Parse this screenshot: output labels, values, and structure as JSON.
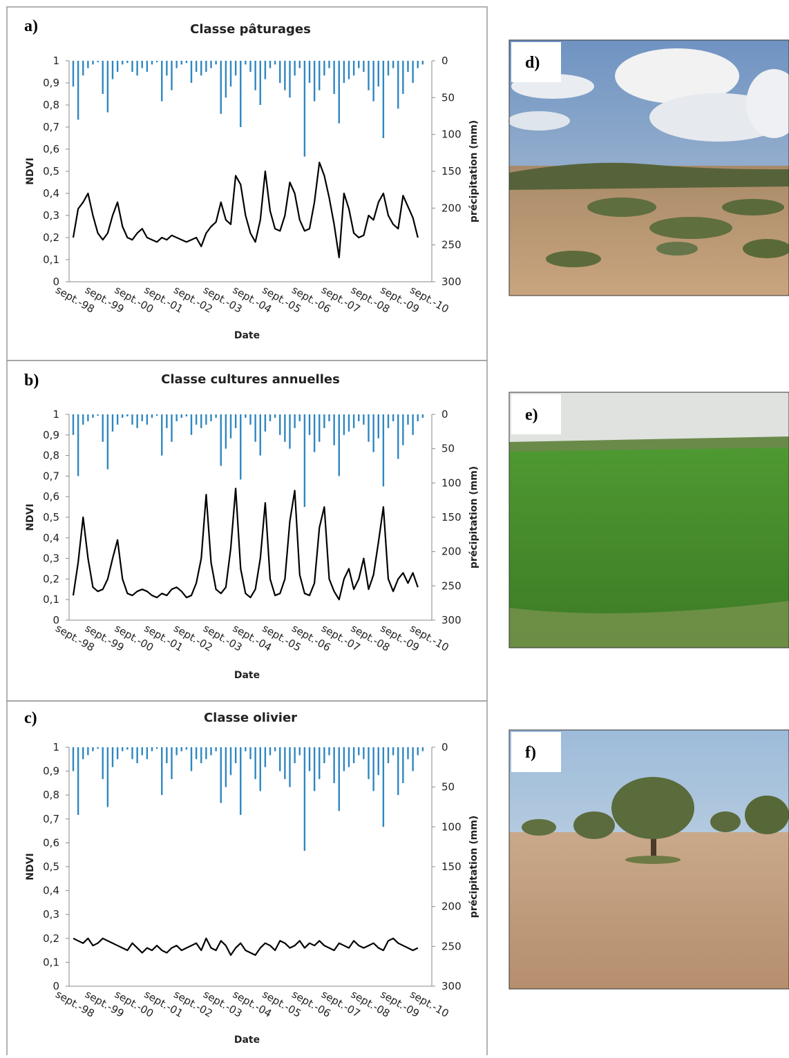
{
  "chart_data": [
    {
      "type": "line",
      "label": "a)",
      "title": "Classe pâturages",
      "x_label": "Date",
      "y_label": "NDVI",
      "y2_label": "précipitation (mm)",
      "categories": [
        "sept.-98",
        null,
        null,
        null,
        null,
        null,
        "sept.-99",
        null,
        null,
        null,
        null,
        null,
        "sept.-00",
        null,
        null,
        null,
        null,
        null,
        "sept.-01",
        null,
        null,
        null,
        null,
        null,
        "sept.-02",
        null,
        null,
        null,
        null,
        null,
        "sept.-03",
        null,
        null,
        null,
        null,
        null,
        "sept.-04",
        null,
        null,
        null,
        null,
        null,
        "sept.-05",
        null,
        null,
        null,
        null,
        null,
        "sept.-06",
        null,
        null,
        null,
        null,
        null,
        "sept.-07",
        null,
        null,
        null,
        null,
        null,
        "sept.-08",
        null,
        null,
        null,
        null,
        null,
        "sept.-09",
        null,
        null,
        null,
        null,
        null,
        "sept.-10"
      ],
      "ylim": [
        0,
        1
      ],
      "yticks": [
        0,
        {
          "value": 0.1,
          "label": "0,1"
        },
        {
          "value": 0.2,
          "label": "0,2"
        },
        {
          "value": 0.3,
          "label": "0,3"
        },
        {
          "value": 0.4,
          "label": "0,4"
        },
        {
          "value": 0.5,
          "label": "0,5"
        },
        {
          "value": 0.6,
          "label": "0,6"
        },
        {
          "value": 0.7,
          "label": "0,7"
        },
        {
          "value": 0.8,
          "label": "0,8"
        },
        {
          "value": 0.9,
          "label": "0,9"
        },
        1
      ],
      "y2lim": [
        300,
        0
      ],
      "y2ticks": [
        0,
        50,
        100,
        150,
        200,
        250,
        300
      ],
      "series": [
        {
          "type": "bar",
          "axis": "y2",
          "color": "#2e86c1",
          "values": [
            35,
            80,
            20,
            10,
            5,
            2,
            45,
            70,
            25,
            15,
            5,
            3,
            15,
            20,
            10,
            15,
            5,
            2,
            55,
            20,
            40,
            10,
            5,
            3,
            30,
            15,
            20,
            15,
            10,
            5,
            72,
            50,
            35,
            20,
            90,
            5,
            15,
            40,
            60,
            25,
            10,
            5,
            30,
            40,
            50,
            20,
            10,
            130,
            30,
            55,
            40,
            20,
            10,
            45,
            85,
            30,
            25,
            20,
            10,
            15,
            40,
            55,
            35,
            105,
            20,
            10,
            65,
            45,
            15,
            30,
            10,
            5,
            0
          ]
        },
        {
          "type": "line",
          "color": "#000000",
          "values": [
            0.2,
            0.33,
            0.36,
            0.4,
            0.3,
            0.22,
            0.19,
            0.22,
            0.3,
            0.36,
            0.25,
            0.2,
            0.19,
            0.22,
            0.24,
            0.2,
            0.19,
            0.18,
            0.2,
            0.19,
            0.21,
            0.2,
            0.19,
            0.18,
            0.19,
            0.2,
            0.16,
            0.22,
            0.25,
            0.27,
            0.36,
            0.28,
            0.26,
            0.48,
            0.44,
            0.3,
            0.22,
            0.18,
            0.28,
            0.5,
            0.32,
            0.24,
            0.23,
            0.3,
            0.45,
            0.4,
            0.28,
            0.23,
            0.24,
            0.36,
            0.54,
            0.48,
            0.38,
            0.26,
            0.11,
            0.4,
            0.33,
            0.22,
            0.2,
            0.21,
            0.3,
            0.28,
            0.36,
            0.4,
            0.3,
            0.26,
            0.24,
            0.39,
            0.34,
            0.29,
            0.2,
            null,
            null
          ]
        }
      ]
    },
    {
      "type": "line",
      "label": "b)",
      "title": "Classe cultures annuelles",
      "x_label": "Date",
      "y_label": "NDVI",
      "y2_label": "précipitation (mm)",
      "categories": [
        "sept.-98",
        null,
        null,
        null,
        null,
        null,
        "sept.-99",
        null,
        null,
        null,
        null,
        null,
        "sept.-00",
        null,
        null,
        null,
        null,
        null,
        "sept.-01",
        null,
        null,
        null,
        null,
        null,
        "sept.-02",
        null,
        null,
        null,
        null,
        null,
        "sept.-03",
        null,
        null,
        null,
        null,
        null,
        "sept.-04",
        null,
        null,
        null,
        null,
        null,
        "sept.-05",
        null,
        null,
        null,
        null,
        null,
        "sept.-06",
        null,
        null,
        null,
        null,
        null,
        "sept.-07",
        null,
        null,
        null,
        null,
        null,
        "sept.-08",
        null,
        null,
        null,
        null,
        null,
        "sept.-09",
        null,
        null,
        null,
        null,
        null,
        "sept.-10"
      ],
      "ylim": [
        0,
        1
      ],
      "yticks": [
        0,
        {
          "value": 0.1,
          "label": "0,1"
        },
        {
          "value": 0.2,
          "label": "0,2"
        },
        {
          "value": 0.3,
          "label": "0,3"
        },
        {
          "value": 0.4,
          "label": "0,4"
        },
        {
          "value": 0.5,
          "label": "0,5"
        },
        {
          "value": 0.6,
          "label": "0,6"
        },
        {
          "value": 0.7,
          "label": "0,7"
        },
        {
          "value": 0.8,
          "label": "0,8"
        },
        {
          "value": 0.9,
          "label": "0,9"
        },
        1
      ],
      "y2lim": [
        300,
        0
      ],
      "y2ticks": [
        0,
        50,
        100,
        150,
        200,
        250,
        300
      ],
      "series": [
        {
          "type": "bar",
          "axis": "y2",
          "color": "#2e86c1",
          "values": [
            30,
            90,
            15,
            10,
            5,
            2,
            40,
            80,
            25,
            15,
            5,
            3,
            15,
            20,
            10,
            15,
            5,
            2,
            60,
            20,
            40,
            10,
            5,
            3,
            30,
            15,
            20,
            15,
            10,
            5,
            75,
            50,
            35,
            20,
            95,
            5,
            15,
            40,
            60,
            25,
            10,
            5,
            30,
            40,
            50,
            20,
            10,
            135,
            30,
            55,
            40,
            20,
            10,
            45,
            90,
            30,
            25,
            20,
            10,
            15,
            40,
            55,
            35,
            105,
            20,
            10,
            65,
            45,
            15,
            30,
            10,
            5,
            0
          ]
        },
        {
          "type": "line",
          "color": "#000000",
          "values": [
            0.12,
            0.28,
            0.5,
            0.3,
            0.16,
            0.14,
            0.15,
            0.2,
            0.3,
            0.39,
            0.2,
            0.13,
            0.12,
            0.14,
            0.15,
            0.14,
            0.12,
            0.11,
            0.13,
            0.12,
            0.15,
            0.16,
            0.14,
            0.11,
            0.12,
            0.18,
            0.3,
            0.61,
            0.28,
            0.15,
            0.13,
            0.16,
            0.35,
            0.64,
            0.25,
            0.13,
            0.11,
            0.15,
            0.3,
            0.57,
            0.2,
            0.12,
            0.13,
            0.2,
            0.48,
            0.63,
            0.22,
            0.13,
            0.12,
            0.18,
            0.45,
            0.55,
            0.2,
            0.14,
            0.1,
            0.2,
            0.25,
            0.15,
            0.2,
            0.3,
            0.15,
            0.22,
            0.38,
            0.55,
            0.2,
            0.14,
            0.2,
            0.23,
            0.18,
            0.23,
            0.16,
            null,
            null
          ]
        }
      ]
    },
    {
      "type": "line",
      "label": "c)",
      "title": "Classe olivier",
      "x_label": "Date",
      "y_label": "NDVI",
      "y2_label": "précipitation (mm)",
      "categories": [
        "sept.-98",
        null,
        null,
        null,
        null,
        null,
        "sept.-99",
        null,
        null,
        null,
        null,
        null,
        "sept.-00",
        null,
        null,
        null,
        null,
        null,
        "sept.-01",
        null,
        null,
        null,
        null,
        null,
        "sept.-02",
        null,
        null,
        null,
        null,
        null,
        "sept.-03",
        null,
        null,
        null,
        null,
        null,
        "sept.-04",
        null,
        null,
        null,
        null,
        null,
        "sept.-05",
        null,
        null,
        null,
        null,
        null,
        "sept.-06",
        null,
        null,
        null,
        null,
        null,
        "sept.-07",
        null,
        null,
        null,
        null,
        null,
        "sept.-08",
        null,
        null,
        null,
        null,
        null,
        "sept.-09",
        null,
        null,
        null,
        null,
        null,
        "sept.-10"
      ],
      "ylim": [
        0,
        1
      ],
      "yticks": [
        0,
        {
          "value": 0.1,
          "label": "0,1"
        },
        {
          "value": 0.2,
          "label": "0,2"
        },
        {
          "value": 0.3,
          "label": "0,3"
        },
        {
          "value": 0.4,
          "label": "0,4"
        },
        {
          "value": 0.5,
          "label": "0,5"
        },
        {
          "value": 0.6,
          "label": "0,6"
        },
        {
          "value": 0.7,
          "label": "0,7"
        },
        {
          "value": 0.8,
          "label": "0,8"
        },
        {
          "value": 0.9,
          "label": "0,9"
        },
        1
      ],
      "y2lim": [
        300,
        0
      ],
      "y2ticks": [
        0,
        50,
        100,
        150,
        200,
        250,
        300
      ],
      "series": [
        {
          "type": "bar",
          "axis": "y2",
          "color": "#2e86c1",
          "values": [
            30,
            85,
            15,
            10,
            5,
            2,
            40,
            75,
            25,
            15,
            5,
            3,
            15,
            20,
            10,
            15,
            5,
            2,
            60,
            20,
            40,
            10,
            5,
            3,
            30,
            15,
            20,
            15,
            10,
            5,
            70,
            50,
            35,
            20,
            85,
            5,
            15,
            40,
            55,
            25,
            10,
            5,
            30,
            40,
            50,
            20,
            10,
            130,
            30,
            55,
            40,
            20,
            10,
            45,
            80,
            30,
            25,
            20,
            10,
            15,
            40,
            55,
            35,
            100,
            20,
            10,
            60,
            45,
            15,
            30,
            10,
            5,
            0
          ]
        },
        {
          "type": "line",
          "color": "#000000",
          "values": [
            0.2,
            0.19,
            0.18,
            0.2,
            0.17,
            0.18,
            0.2,
            0.19,
            0.18,
            0.17,
            0.16,
            0.15,
            0.18,
            0.16,
            0.14,
            0.16,
            0.15,
            0.17,
            0.15,
            0.14,
            0.16,
            0.17,
            0.15,
            0.16,
            0.17,
            0.18,
            0.15,
            0.2,
            0.16,
            0.15,
            0.19,
            0.17,
            0.13,
            0.16,
            0.18,
            0.15,
            0.14,
            0.13,
            0.16,
            0.18,
            0.17,
            0.15,
            0.19,
            0.18,
            0.16,
            0.17,
            0.19,
            0.16,
            0.18,
            0.17,
            0.19,
            0.17,
            0.16,
            0.15,
            0.18,
            0.17,
            0.16,
            0.19,
            0.17,
            0.16,
            0.17,
            0.18,
            0.16,
            0.15,
            0.19,
            0.2,
            0.18,
            0.17,
            0.16,
            0.15,
            0.16,
            null,
            null
          ]
        }
      ]
    }
  ],
  "photos": [
    {
      "label": "d)"
    },
    {
      "label": "e)"
    },
    {
      "label": "f)"
    }
  ]
}
